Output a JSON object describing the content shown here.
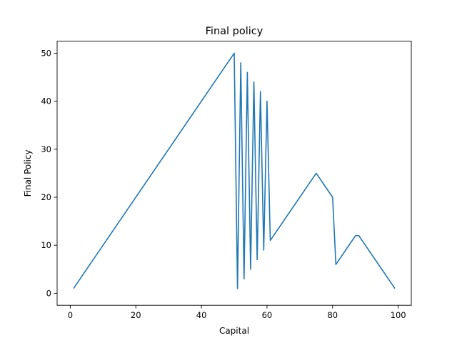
{
  "chart_data": {
    "type": "line",
    "title": "Final policy",
    "xlabel": "Capital",
    "ylabel": "Final Policy",
    "xlim": [
      -4,
      104
    ],
    "ylim": [
      -2.5,
      52.5
    ],
    "xticks": [
      0,
      20,
      40,
      60,
      80,
      100
    ],
    "yticks": [
      0,
      10,
      20,
      30,
      40,
      50
    ],
    "grid": false,
    "legend": "none",
    "color": "#1f77b4",
    "series": [
      {
        "x": [
          1,
          50,
          51,
          52,
          53,
          54,
          55,
          56,
          57,
          58,
          59,
          60,
          61,
          75,
          80,
          81,
          87,
          88,
          99
        ],
        "y": [
          1,
          50,
          1,
          48,
          3,
          46,
          5,
          44,
          7,
          42,
          9,
          40,
          11,
          25,
          20,
          6,
          12,
          12,
          1
        ]
      }
    ]
  }
}
